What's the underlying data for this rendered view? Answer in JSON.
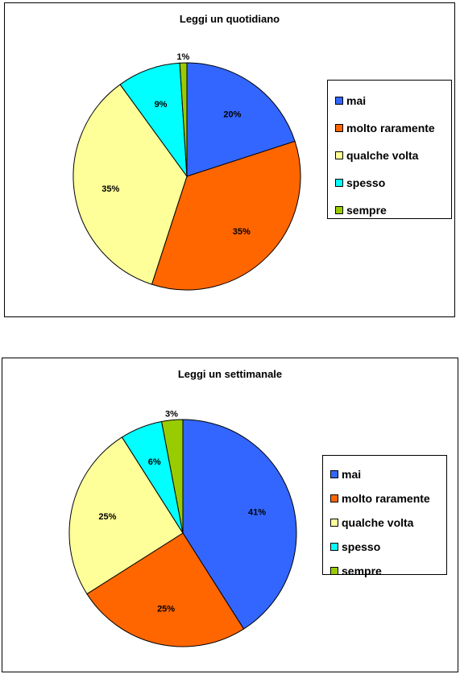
{
  "chart_data": [
    {
      "type": "pie",
      "title": "Leggi un quotidiano",
      "categories": [
        "mai",
        "molto raramente",
        "qualche volta",
        "spesso",
        "sempre"
      ],
      "values": [
        20,
        35,
        35,
        9,
        1
      ],
      "labels": [
        "20%",
        "35%",
        "35%",
        "9%",
        "1%"
      ],
      "colors": [
        "#3366FF",
        "#FF6600",
        "#FFFF99",
        "#00FFFF",
        "#99CC00"
      ],
      "legend_position": "right"
    },
    {
      "type": "pie",
      "title": "Leggi un settimanale",
      "categories": [
        "mai",
        "molto raramente",
        "qualche volta",
        "spesso",
        "sempre"
      ],
      "values": [
        41,
        25,
        25,
        6,
        3
      ],
      "labels": [
        "41%",
        "25%",
        "25%",
        "6%",
        "3%"
      ],
      "colors": [
        "#3366FF",
        "#FF6600",
        "#FFFF99",
        "#00FFFF",
        "#99CC00"
      ],
      "legend_position": "right"
    }
  ]
}
